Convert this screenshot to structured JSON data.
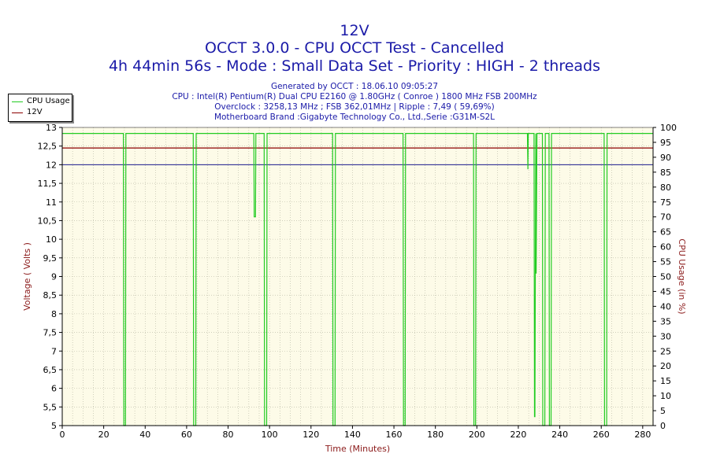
{
  "header": {
    "title": "12V",
    "subtitle1": "OCCT 3.0.0 - CPU OCCT Test - Cancelled",
    "subtitle2": "4h 44min 56s - Mode : Small Data Set - Priority : HIGH - 2 threads",
    "info": [
      "Generated by OCCT : 18.06.10 09:05:27",
      "CPU : Intel(R) Pentium(R) Dual CPU E2160 @ 1.80GHz ( Conroe ) 1800 MHz FSB 200MHz",
      "Overclock : 3258,13 MHz ; FSB 362,01MHz | Ripple : 7,49 ( 59,69%)",
      "Motherboard Brand :Gigabyte Technology Co., Ltd.,Serie :G31M-S2L"
    ]
  },
  "legend": {
    "items": [
      {
        "label": "CPU Usage",
        "color": "#22cc22"
      },
      {
        "label": "12V",
        "color": "#8b0000"
      }
    ]
  },
  "chart_data": {
    "type": "line",
    "xlabel": "Time (Minutes)",
    "ylabel_left": "Voltage ( Volts )",
    "ylabel_right": "CPU Usage (in %)",
    "xlim": [
      0,
      285
    ],
    "ylim_left": [
      5,
      13
    ],
    "ylim_right": [
      0,
      100
    ],
    "x_ticks": [
      "0",
      "20",
      "40",
      "60",
      "80",
      "100",
      "120",
      "140",
      "160",
      "180",
      "200",
      "220",
      "240",
      "260",
      "280"
    ],
    "y_ticks_left": [
      "5",
      "5,5",
      "6",
      "6,5",
      "7",
      "7,5",
      "8",
      "8,5",
      "9",
      "9,5",
      "10",
      "10,5",
      "11",
      "11,5",
      "12",
      "12,5",
      "13"
    ],
    "y_ticks_right": [
      "0",
      "5",
      "10",
      "15",
      "20",
      "25",
      "30",
      "35",
      "40",
      "45",
      "50",
      "55",
      "60",
      "65",
      "70",
      "75",
      "80",
      "85",
      "90",
      "95",
      "100"
    ],
    "reference_line_left": 12,
    "grid": true,
    "legend_position": "top-left",
    "colors": {
      "plot_bg": "#fdfbe8",
      "grid": "#b4b4a0",
      "axis_text": "#8b1a1a",
      "reference": "#1a1a8c"
    },
    "series": [
      {
        "name": "12V",
        "axis": "left",
        "color": "#8b0000",
        "x": [
          0,
          285
        ],
        "values": [
          12.45,
          12.45
        ]
      },
      {
        "name": "CPU Usage",
        "axis": "right",
        "color": "#22cc22",
        "x": [
          0,
          29.5,
          29.7,
          30.5,
          30.7,
          63.2,
          63.4,
          64.4,
          64.6,
          92.4,
          92.6,
          93.2,
          93.4,
          97.4,
          97.6,
          98.6,
          98.8,
          130.4,
          130.6,
          131.6,
          131.8,
          164.4,
          164.6,
          165.4,
          165.6,
          198.4,
          198.6,
          199.4,
          199.6,
          224.4,
          224.6,
          224.8,
          227.6,
          227.8,
          228.0,
          228.4,
          228.6,
          229.0,
          231.6,
          231.8,
          232.8,
          233.0,
          234.8,
          235.0,
          235.8,
          236.0,
          261.4,
          261.6,
          262.6,
          262.8,
          285
        ],
        "values": [
          98,
          98,
          0,
          0,
          98,
          98,
          0,
          0,
          98,
          98,
          70,
          70,
          98,
          98,
          0,
          0,
          98,
          98,
          0,
          0,
          98,
          98,
          0,
          0,
          98,
          98,
          0,
          0,
          98,
          98,
          86,
          98,
          98,
          3,
          3,
          98,
          51,
          98,
          98,
          0,
          0,
          98,
          98,
          0,
          0,
          98,
          98,
          0,
          0,
          98,
          98
        ]
      }
    ]
  }
}
